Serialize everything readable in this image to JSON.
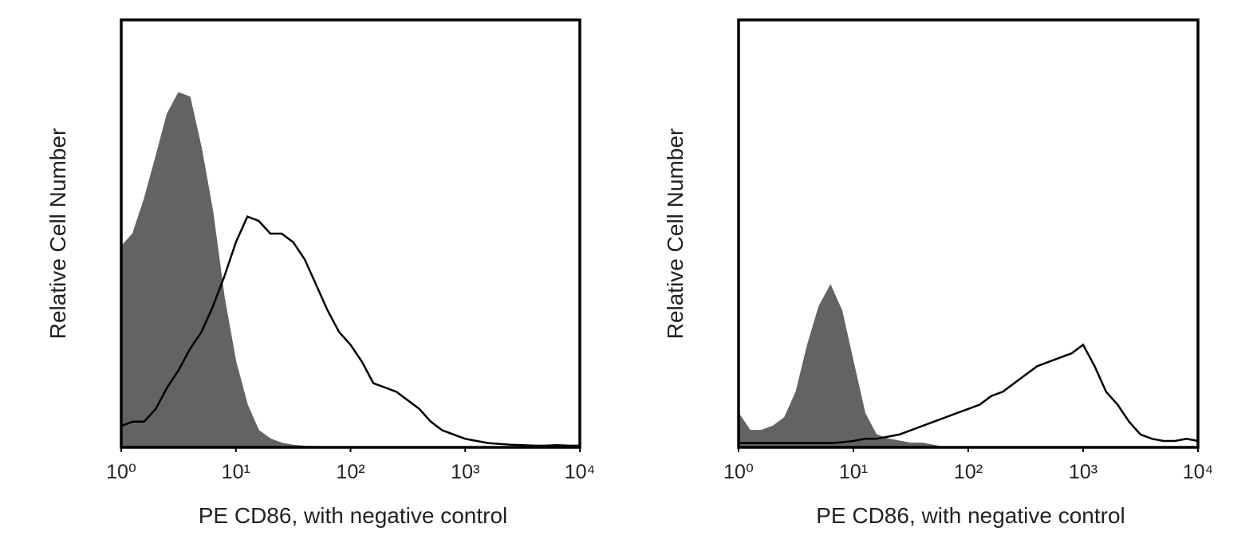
{
  "chart_data": [
    {
      "type": "line",
      "xlabel": "PE CD86, with negative control",
      "ylabel": "Relative Cell Number",
      "xscale": "log",
      "xlim": [
        1,
        10000
      ],
      "xticks": [
        {
          "value": 1,
          "label": "10⁰"
        },
        {
          "value": 10,
          "label": "10¹"
        },
        {
          "value": 100,
          "label": "10²"
        },
        {
          "value": 1000,
          "label": "10³"
        },
        {
          "value": 10000,
          "label": "10⁴"
        }
      ],
      "ylim": [
        0,
        100
      ],
      "x": [
        1,
        1.26,
        1.58,
        2,
        2.51,
        3.16,
        3.98,
        5.01,
        6.31,
        7.94,
        10,
        12.6,
        15.8,
        20,
        25.1,
        31.6,
        39.8,
        50.1,
        63.1,
        79.4,
        100,
        126,
        158,
        200,
        251,
        316,
        398,
        501,
        631,
        794,
        1000,
        1259,
        1585,
        1995,
        2512,
        3162,
        3981,
        5012,
        6310,
        7943,
        10000
      ],
      "series": [
        {
          "color": "#636363",
          "fill": true,
          "values": [
            47,
            50,
            58,
            68,
            78,
            83,
            82,
            70,
            55,
            35,
            20,
            10,
            4,
            2,
            1,
            0.5,
            0.3,
            0.2,
            0.1,
            0.1,
            0,
            0,
            0,
            0,
            0,
            0,
            0,
            0,
            0,
            0,
            0,
            0,
            0,
            0,
            0,
            0,
            0,
            0,
            0,
            0,
            0
          ]
        },
        {
          "color": "#000000",
          "fill": false,
          "values": [
            5,
            6,
            6,
            9,
            14,
            18,
            23,
            27,
            33,
            40,
            48,
            54,
            53,
            50,
            50,
            48,
            44,
            38,
            32,
            27,
            24,
            20,
            15,
            14,
            13,
            11,
            9,
            6,
            4,
            3,
            2,
            1.5,
            1,
            0.8,
            0.6,
            0.5,
            0.4,
            0.4,
            0.5,
            0.4,
            0.4
          ]
        }
      ]
    },
    {
      "type": "line",
      "xlabel": "PE CD86, with negative control",
      "ylabel": "Relative Cell Number",
      "xscale": "log",
      "xlim": [
        1,
        10000
      ],
      "xticks": [
        {
          "value": 1,
          "label": "10⁰"
        },
        {
          "value": 10,
          "label": "10¹"
        },
        {
          "value": 100,
          "label": "10²"
        },
        {
          "value": 1000,
          "label": "10³"
        },
        {
          "value": 10000,
          "label": "10⁴"
        }
      ],
      "ylim": [
        0,
        100
      ],
      "x": [
        1,
        1.26,
        1.58,
        2,
        2.51,
        3.16,
        3.98,
        5.01,
        6.31,
        7.94,
        10,
        12.6,
        15.8,
        20,
        25.1,
        31.6,
        39.8,
        50.1,
        63.1,
        79.4,
        100,
        126,
        158,
        200,
        251,
        316,
        398,
        501,
        631,
        794,
        1000,
        1259,
        1585,
        1995,
        2512,
        3162,
        3981,
        5012,
        6310,
        7943,
        10000
      ],
      "series": [
        {
          "color": "#636363",
          "fill": true,
          "values": [
            8,
            4,
            4,
            5,
            7,
            13,
            24,
            33,
            38,
            32,
            20,
            8,
            3,
            2,
            1.5,
            1,
            1,
            0.5,
            0,
            0,
            0,
            0,
            0,
            0,
            0,
            0,
            0,
            0,
            0,
            0,
            0,
            0,
            0,
            0,
            0,
            0,
            0,
            0,
            0,
            0,
            0
          ]
        },
        {
          "color": "#000000",
          "fill": false,
          "values": [
            1,
            1,
            1,
            1,
            1,
            1,
            1,
            1,
            1,
            1.2,
            1.5,
            2,
            2,
            2.5,
            3,
            4,
            5,
            6,
            7,
            8,
            9,
            10,
            12,
            13,
            15,
            17,
            19,
            20,
            21,
            22,
            24,
            19,
            13,
            10,
            6,
            3,
            2,
            1.5,
            1.5,
            2,
            1.5
          ]
        }
      ]
    }
  ]
}
